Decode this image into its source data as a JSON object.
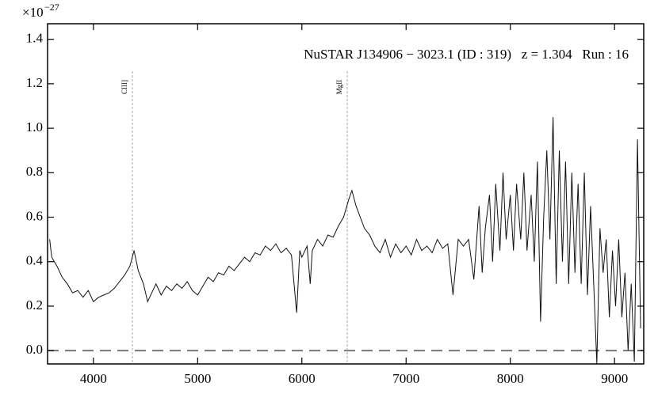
{
  "chart_data": {
    "type": "line",
    "title": "NuSTAR J134906 − 3023.1 (ID : 319)   z = 1.304   Run : 16",
    "y_scale_label": {
      "base": "×10",
      "exponent": "−27"
    },
    "x": [
      3580,
      3600,
      3650,
      3700,
      3750,
      3800,
      3850,
      3900,
      3950,
      4000,
      4050,
      4100,
      4150,
      4200,
      4250,
      4300,
      4350,
      4390,
      4430,
      4480,
      4520,
      4560,
      4600,
      4650,
      4700,
      4750,
      4800,
      4850,
      4900,
      4950,
      5000,
      5050,
      5100,
      5150,
      5200,
      5250,
      5300,
      5350,
      5400,
      5450,
      5500,
      5550,
      5600,
      5650,
      5700,
      5750,
      5800,
      5850,
      5900,
      5950,
      5980,
      6000,
      6050,
      6080,
      6100,
      6150,
      6200,
      6250,
      6300,
      6350,
      6400,
      6450,
      6480,
      6520,
      6560,
      6600,
      6650,
      6700,
      6750,
      6800,
      6850,
      6900,
      6950,
      7000,
      7050,
      7100,
      7150,
      7200,
      7250,
      7300,
      7350,
      7400,
      7450,
      7500,
      7550,
      7600,
      7650,
      7700,
      7730,
      7760,
      7800,
      7830,
      7860,
      7900,
      7930,
      7960,
      8000,
      8030,
      8060,
      8100,
      8130,
      8160,
      8200,
      8230,
      8260,
      8290,
      8320,
      8350,
      8380,
      8410,
      8440,
      8470,
      8500,
      8530,
      8560,
      8590,
      8620,
      8650,
      8680,
      8710,
      8740,
      8770,
      8800,
      8830,
      8860,
      8890,
      8920,
      8950,
      8980,
      9010,
      9040,
      9070,
      9100,
      9130,
      9160,
      9190,
      9220,
      9250
    ],
    "series": [
      {
        "color": "#111111",
        "values": [
          0.5,
          0.42,
          0.38,
          0.33,
          0.3,
          0.26,
          0.27,
          0.24,
          0.27,
          0.22,
          0.24,
          0.25,
          0.26,
          0.28,
          0.31,
          0.34,
          0.38,
          0.45,
          0.36,
          0.3,
          0.22,
          0.26,
          0.3,
          0.25,
          0.29,
          0.27,
          0.3,
          0.28,
          0.31,
          0.27,
          0.25,
          0.29,
          0.33,
          0.31,
          0.35,
          0.34,
          0.38,
          0.36,
          0.39,
          0.42,
          0.4,
          0.44,
          0.43,
          0.47,
          0.45,
          0.48,
          0.44,
          0.46,
          0.43,
          0.17,
          0.45,
          0.42,
          0.47,
          0.3,
          0.45,
          0.5,
          0.47,
          0.52,
          0.51,
          0.56,
          0.6,
          0.68,
          0.72,
          0.65,
          0.6,
          0.55,
          0.52,
          0.47,
          0.44,
          0.5,
          0.42,
          0.48,
          0.44,
          0.47,
          0.43,
          0.5,
          0.45,
          0.47,
          0.44,
          0.5,
          0.46,
          0.48,
          0.25,
          0.5,
          0.47,
          0.5,
          0.32,
          0.65,
          0.35,
          0.55,
          0.7,
          0.4,
          0.75,
          0.45,
          0.8,
          0.5,
          0.7,
          0.45,
          0.75,
          0.5,
          0.8,
          0.45,
          0.7,
          0.4,
          0.85,
          0.13,
          0.6,
          0.9,
          0.5,
          1.05,
          0.3,
          0.9,
          0.4,
          0.85,
          0.3,
          0.8,
          0.35,
          0.75,
          0.3,
          0.8,
          0.25,
          0.65,
          0.3,
          -0.06,
          0.55,
          0.35,
          0.5,
          0.15,
          0.45,
          0.2,
          0.5,
          0.15,
          0.35,
          0.0,
          0.3,
          -0.05,
          0.95,
          0.1
        ]
      }
    ],
    "annotations": [
      {
        "x": 4374,
        "label": "CIII]"
      },
      {
        "x": 6435,
        "label": "MgII"
      }
    ],
    "hline": 0,
    "xlim": [
      3560,
      9280
    ],
    "ylim": [
      -0.06,
      1.47
    ],
    "xticks": [
      4000,
      5000,
      6000,
      7000,
      8000,
      9000
    ],
    "yticks": [
      {
        "value": 0,
        "label": "0.0"
      },
      0.2,
      0.4,
      0.6,
      0.8,
      {
        "value": 1,
        "label": "1.0"
      },
      1.2,
      1.4
    ]
  }
}
